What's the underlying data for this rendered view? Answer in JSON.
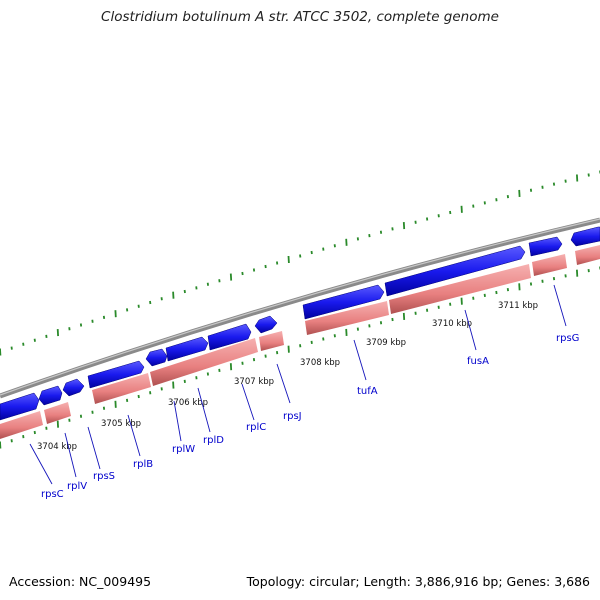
{
  "title": "Clostridium botulinum A str. ATCC 3502, complete genome",
  "footer": {
    "accession": "Accession: NC_009495",
    "stats": "Topology: circular; Length: 3,886,916 bp; Genes: 3,686"
  },
  "colors": {
    "backbone": "#8a8a8a",
    "forward_gene": "#1010ee",
    "reverse_gene": "#e88080",
    "tick": "#2a8a2a",
    "gene_label": "#0000cc"
  },
  "kbp_labels": [
    "3704 kbp",
    "3705 kbp",
    "3706 kbp",
    "3707 kbp",
    "3708 kbp",
    "3709 kbp",
    "3710 kbp",
    "3711 kbp"
  ],
  "gene_labels": [
    "rpsC",
    "rplV",
    "rpsS",
    "rplB",
    "rplW",
    "rplD",
    "rplC",
    "rpsJ",
    "tufA",
    "fusA",
    "rpsG"
  ]
}
